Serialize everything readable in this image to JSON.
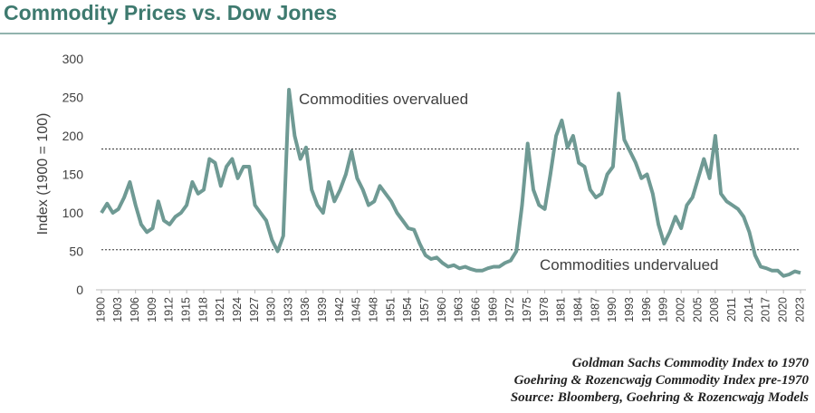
{
  "chart_data": {
    "type": "line",
    "title": "Commodity Prices vs. Dow Jones",
    "y_label": "Index (1900 = 100)",
    "annotations": [
      "Commodities overvalued",
      "Commodities undervalued"
    ],
    "notes": [
      "Goldman Sachs Commodity Index to 1970",
      "Goehring & Rozencwajg Commodity Index pre-1970",
      "Source: Bloomberg, Goehring & Rozencwajg Models"
    ],
    "reference_lines": [
      183,
      52
    ],
    "color": "#6f9a94",
    "x": [
      1900,
      1901,
      1902,
      1903,
      1904,
      1905,
      1906,
      1907,
      1908,
      1909,
      1910,
      1911,
      1912,
      1913,
      1914,
      1915,
      1916,
      1917,
      1918,
      1919,
      1920,
      1921,
      1922,
      1923,
      1924,
      1925,
      1926,
      1927,
      1928,
      1929,
      1930,
      1931,
      1932,
      1933,
      1934,
      1935,
      1936,
      1937,
      1938,
      1939,
      1940,
      1941,
      1942,
      1943,
      1944,
      1945,
      1946,
      1947,
      1948,
      1949,
      1950,
      1951,
      1952,
      1953,
      1954,
      1955,
      1956,
      1957,
      1958,
      1959,
      1960,
      1961,
      1962,
      1963,
      1964,
      1965,
      1966,
      1967,
      1968,
      1969,
      1970,
      1971,
      1972,
      1973,
      1974,
      1975,
      1976,
      1977,
      1978,
      1979,
      1980,
      1981,
      1982,
      1983,
      1984,
      1985,
      1986,
      1987,
      1988,
      1989,
      1990,
      1991,
      1992,
      1993,
      1994,
      1995,
      1996,
      1997,
      1998,
      1999,
      2000,
      2001,
      2002,
      2003,
      2004,
      2005,
      2006,
      2007,
      2008,
      2009,
      2010,
      2011,
      2012,
      2013,
      2014,
      2015,
      2016,
      2017,
      2018,
      2019,
      2020,
      2021,
      2022,
      2023
    ],
    "values": [
      100,
      112,
      100,
      105,
      120,
      140,
      110,
      85,
      75,
      80,
      115,
      90,
      85,
      95,
      100,
      110,
      140,
      125,
      130,
      170,
      165,
      135,
      160,
      170,
      145,
      160,
      160,
      110,
      100,
      90,
      65,
      50,
      70,
      260,
      200,
      170,
      185,
      130,
      110,
      100,
      140,
      115,
      130,
      150,
      180,
      145,
      130,
      110,
      115,
      135,
      125,
      115,
      100,
      90,
      80,
      78,
      60,
      45,
      40,
      42,
      35,
      30,
      32,
      28,
      30,
      27,
      25,
      25,
      28,
      30,
      30,
      35,
      38,
      50,
      110,
      190,
      130,
      110,
      105,
      150,
      200,
      220,
      185,
      200,
      165,
      160,
      130,
      120,
      125,
      150,
      160,
      255,
      195,
      180,
      165,
      145,
      150,
      125,
      85,
      60,
      75,
      95,
      80,
      110,
      120,
      145,
      170,
      145,
      200,
      125,
      115,
      110,
      105,
      95,
      75,
      45,
      30,
      28,
      25,
      25,
      18,
      20,
      24,
      22
    ],
    "xlim": [
      1900,
      2023
    ],
    "xticks": [
      1900,
      1903,
      1906,
      1909,
      1912,
      1915,
      1918,
      1921,
      1924,
      1927,
      1930,
      1933,
      1936,
      1939,
      1942,
      1945,
      1948,
      1951,
      1954,
      1957,
      1960,
      1963,
      1966,
      1969,
      1972,
      1975,
      1978,
      1981,
      1984,
      1987,
      1990,
      1993,
      1996,
      1999,
      2002,
      2005,
      2008,
      2011,
      2014,
      2017,
      2020,
      2023
    ],
    "ylim": [
      0,
      300
    ],
    "yticks": [
      0,
      50,
      100,
      150,
      200,
      250,
      300
    ]
  }
}
